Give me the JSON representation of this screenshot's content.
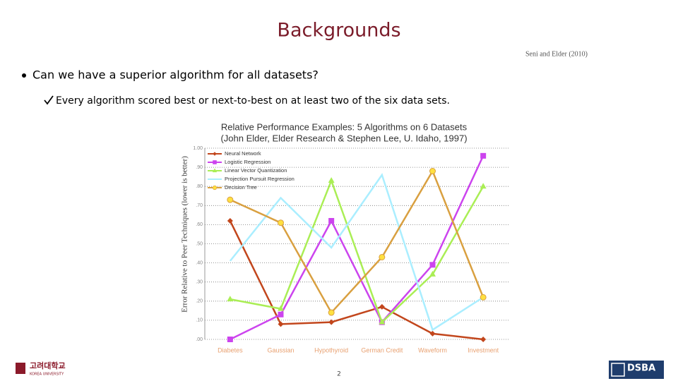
{
  "slide": {
    "title": "Backgrounds",
    "citation": "Seni and Elder (2010)",
    "bullet": "Can we have a superior algorithm for all datasets?",
    "sub_bullet": "Every algorithm scored best or next-to-best on at least two of the six data sets.",
    "page_number": "2",
    "logo_left": "고려대학교",
    "logo_left_sub": "KOREA UNIVERSITY",
    "logo_right": "DSBA"
  },
  "chart_data": {
    "type": "line",
    "title": "Relative Performance Examples:  5 Algorithms on 6 Datasets",
    "subtitle": "(John Elder, Elder Research & Stephen Lee, U. Idaho, 1997)",
    "y_label": "Error Relative to Peer Techniques (lower is better)",
    "categories": [
      "Diabetes",
      "Gaussian",
      "Hypothyroid",
      "German Credit",
      "Waveform",
      "Investment"
    ],
    "ylim": [
      0,
      1
    ],
    "yticks": [
      {
        "value": 0,
        "label": ".00"
      },
      {
        "value": 0.1,
        "label": ".10"
      },
      {
        "value": 0.2,
        "label": ".20"
      },
      {
        "value": 0.3,
        "label": ".30"
      },
      {
        "value": 0.4,
        "label": ".40"
      },
      {
        "value": 0.5,
        "label": ".50"
      },
      {
        "value": 0.6,
        "label": ".60"
      },
      {
        "value": 0.7,
        "label": ".70"
      },
      {
        "value": 0.8,
        "label": ".80"
      },
      {
        "value": 0.9,
        "label": ".90"
      },
      {
        "value": 1,
        "label": "1.00"
      }
    ],
    "grid": true,
    "legend": "upper left",
    "series": [
      {
        "name": "Neural Network",
        "color": "#c2461c",
        "marker": "diamond",
        "values": [
          0.62,
          0.08,
          0.09,
          0.17,
          0.03,
          0.0
        ]
      },
      {
        "name": "Logistic Regression",
        "color": "#cc44ee",
        "marker": "square",
        "values": [
          0.0,
          0.13,
          0.62,
          0.09,
          0.39,
          0.96
        ]
      },
      {
        "name": "Linear Vector Quantization",
        "color": "#aaee55",
        "marker": "triangle",
        "values": [
          0.21,
          0.16,
          0.83,
          0.09,
          0.34,
          0.8
        ]
      },
      {
        "name": "Projection Pursuit Regression",
        "color": "#aaeeff",
        "marker": "none",
        "values": [
          0.41,
          0.74,
          0.48,
          0.86,
          0.05,
          0.22
        ]
      },
      {
        "name": "Decision Tree",
        "color": "#d9a040",
        "marker": "circle",
        "values": [
          0.73,
          0.61,
          0.14,
          0.43,
          0.88,
          0.22
        ]
      }
    ]
  }
}
